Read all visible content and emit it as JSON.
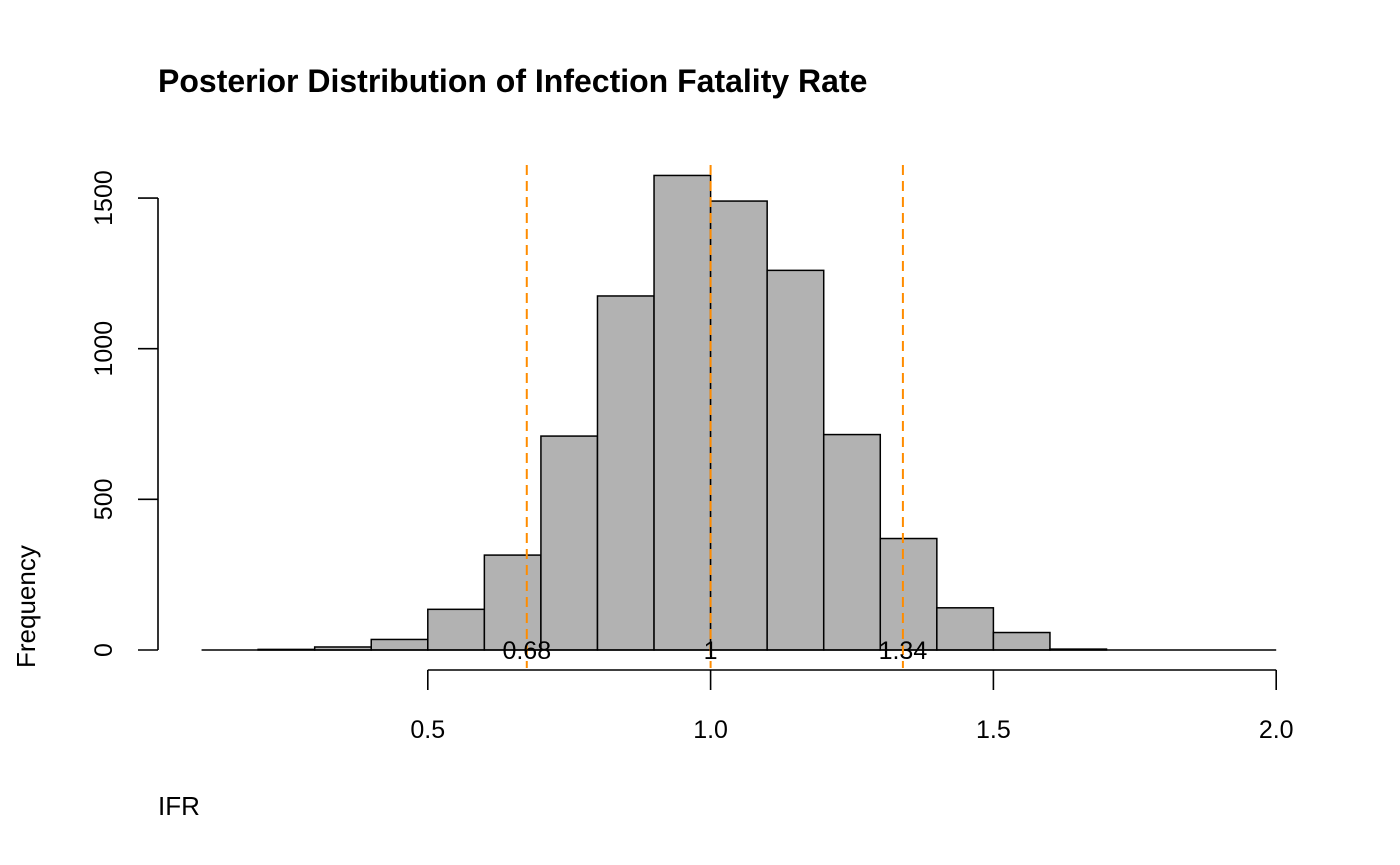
{
  "chart_data": {
    "type": "bar",
    "title": "Posterior Distribution of Infection Fatality Rate",
    "xlabel": "IFR",
    "ylabel": "Frequency",
    "bins": [
      {
        "from": 0.2,
        "to": 0.3,
        "count": 2
      },
      {
        "from": 0.3,
        "to": 0.4,
        "count": 10
      },
      {
        "from": 0.4,
        "to": 0.5,
        "count": 35
      },
      {
        "from": 0.5,
        "to": 0.6,
        "count": 135
      },
      {
        "from": 0.6,
        "to": 0.7,
        "count": 315
      },
      {
        "from": 0.7,
        "to": 0.8,
        "count": 710
      },
      {
        "from": 0.8,
        "to": 0.9,
        "count": 1175
      },
      {
        "from": 0.9,
        "to": 1.0,
        "count": 1575
      },
      {
        "from": 1.0,
        "to": 1.1,
        "count": 1490
      },
      {
        "from": 1.1,
        "to": 1.2,
        "count": 1260
      },
      {
        "from": 1.2,
        "to": 1.3,
        "count": 715
      },
      {
        "from": 1.3,
        "to": 1.4,
        "count": 370
      },
      {
        "from": 1.4,
        "to": 1.5,
        "count": 140
      },
      {
        "from": 1.5,
        "to": 1.6,
        "count": 58
      },
      {
        "from": 1.6,
        "to": 1.7,
        "count": 3
      }
    ],
    "x_ticks": [
      "0.5",
      "1.0",
      "1.5",
      "2.0"
    ],
    "x_tick_values": [
      0.5,
      1.0,
      1.5,
      2.0
    ],
    "y_ticks": [
      "0",
      "500",
      "1000",
      "1500"
    ],
    "y_tick_values": [
      0,
      500,
      1000,
      1500
    ],
    "xlim": [
      0.0,
      2.0
    ],
    "ylim": [
      0,
      1600
    ],
    "reference_lines": [
      {
        "value": 0.675,
        "label": "0.68",
        "color": "#FF8C00"
      },
      {
        "value": 1.0,
        "label": "1",
        "color": "#FF8C00"
      },
      {
        "value": 1.34,
        "label": "1.34",
        "color": "#FF8C00"
      }
    ],
    "bar_color": "#B2B2B2",
    "grid": false,
    "legend": "none"
  }
}
